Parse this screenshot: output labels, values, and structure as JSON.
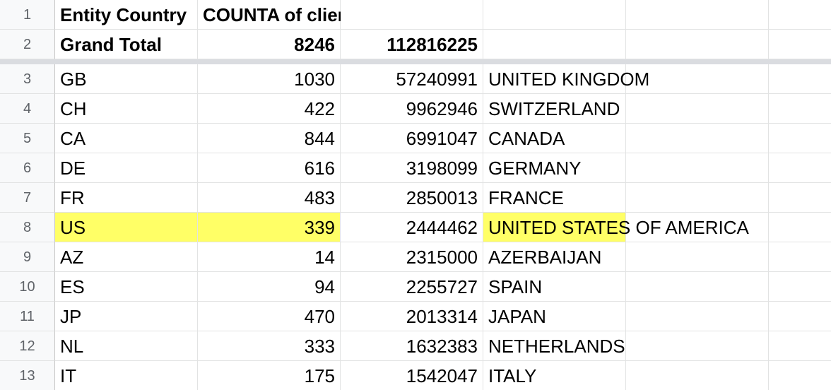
{
  "header": {
    "row_num": "1",
    "col_a": "Entity Country",
    "col_b": "COUNTA of client.id"
  },
  "totals": {
    "row_num": "2",
    "label": "Grand Total",
    "count": "8246",
    "sum": "112816225"
  },
  "rows": [
    {
      "num": "3",
      "code": "GB",
      "count": "1030",
      "value": "57240991",
      "country": "UNITED KINGDOM"
    },
    {
      "num": "4",
      "code": "CH",
      "count": "422",
      "value": "9962946",
      "country": "SWITZERLAND"
    },
    {
      "num": "5",
      "code": "CA",
      "count": "844",
      "value": "6991047",
      "country": "CANADA"
    },
    {
      "num": "6",
      "code": "DE",
      "count": "616",
      "value": "3198099",
      "country": "GERMANY"
    },
    {
      "num": "7",
      "code": "FR",
      "count": "483",
      "value": "2850013",
      "country": "FRANCE"
    },
    {
      "num": "8",
      "code": "US",
      "count": "339",
      "value": "2444462",
      "country": "UNITED STATES OF AMERICA"
    },
    {
      "num": "9",
      "code": "AZ",
      "count": "14",
      "value": "2315000",
      "country": "AZERBAIJAN"
    },
    {
      "num": "10",
      "code": "ES",
      "count": "94",
      "value": "2255727",
      "country": "SPAIN"
    },
    {
      "num": "11",
      "code": "JP",
      "count": "470",
      "value": "2013314",
      "country": "JAPAN"
    },
    {
      "num": "12",
      "code": "NL",
      "count": "333",
      "value": "1632383",
      "country": "NETHERLANDS"
    },
    {
      "num": "13",
      "code": "IT",
      "count": "175",
      "value": "1542047",
      "country": "ITALY"
    }
  ],
  "colors": {
    "highlight": "#ffff66",
    "gridline": "#e2e3e3",
    "row_header_bg": "#f8f9fa",
    "freeze_bar": "#dadce0"
  }
}
